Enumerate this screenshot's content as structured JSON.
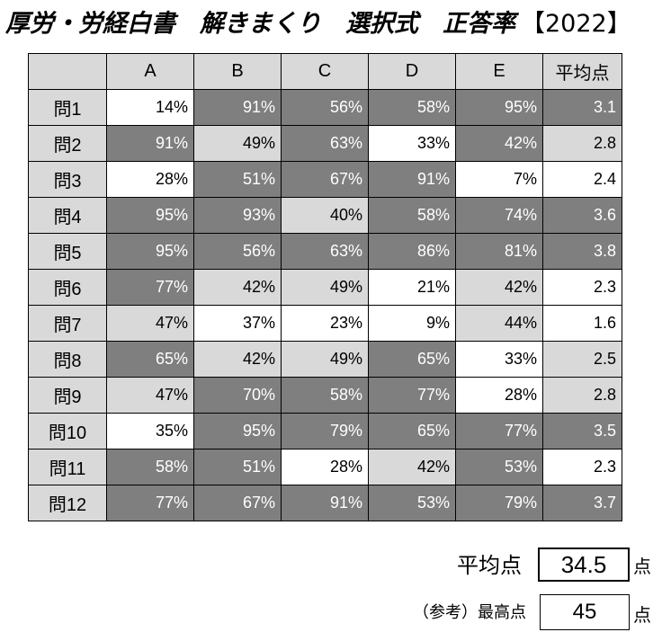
{
  "title": {
    "main": "厚労・労経白書　解きまくり　選択式　正答率",
    "year": "【2022】"
  },
  "table": {
    "headers": [
      "",
      "A",
      "B",
      "C",
      "D",
      "E",
      "平均点"
    ],
    "rows": [
      {
        "label": "問1",
        "values": [
          "14%",
          "91%",
          "56%",
          "58%",
          "95%"
        ],
        "avg": "3.1"
      },
      {
        "label": "問2",
        "values": [
          "91%",
          "49%",
          "63%",
          "33%",
          "42%"
        ],
        "avg": "2.8"
      },
      {
        "label": "問3",
        "values": [
          "28%",
          "51%",
          "67%",
          "91%",
          "7%"
        ],
        "avg": "2.4"
      },
      {
        "label": "問4",
        "values": [
          "95%",
          "93%",
          "40%",
          "58%",
          "74%"
        ],
        "avg": "3.6"
      },
      {
        "label": "問5",
        "values": [
          "95%",
          "56%",
          "63%",
          "86%",
          "81%"
        ],
        "avg": "3.8"
      },
      {
        "label": "問6",
        "values": [
          "77%",
          "42%",
          "49%",
          "21%",
          "42%"
        ],
        "avg": "2.3"
      },
      {
        "label": "問7",
        "values": [
          "47%",
          "37%",
          "23%",
          "9%",
          "44%"
        ],
        "avg": "1.6"
      },
      {
        "label": "問8",
        "values": [
          "65%",
          "42%",
          "49%",
          "65%",
          "33%"
        ],
        "avg": "2.5"
      },
      {
        "label": "問9",
        "values": [
          "47%",
          "70%",
          "58%",
          "77%",
          "28%"
        ],
        "avg": "2.8"
      },
      {
        "label": "問10",
        "values": [
          "35%",
          "95%",
          "79%",
          "65%",
          "77%"
        ],
        "avg": "3.5"
      },
      {
        "label": "問11",
        "values": [
          "58%",
          "51%",
          "28%",
          "42%",
          "53%"
        ],
        "avg": "2.3"
      },
      {
        "label": "問12",
        "values": [
          "77%",
          "67%",
          "91%",
          "53%",
          "79%"
        ],
        "avg": "3.7"
      }
    ],
    "shading": [
      [
        "white",
        "dark",
        "dark",
        "dark",
        "dark",
        "dark"
      ],
      [
        "dark",
        "light",
        "dark",
        "white",
        "dark",
        "light"
      ],
      [
        "white",
        "dark",
        "dark",
        "dark",
        "white",
        "white"
      ],
      [
        "dark",
        "dark",
        "light",
        "dark",
        "dark",
        "dark"
      ],
      [
        "dark",
        "dark",
        "dark",
        "dark",
        "dark",
        "dark"
      ],
      [
        "dark",
        "light",
        "light",
        "white",
        "light",
        "white"
      ],
      [
        "light",
        "white",
        "white",
        "white",
        "light",
        "white"
      ],
      [
        "dark",
        "light",
        "light",
        "dark",
        "white",
        "light"
      ],
      [
        "light",
        "dark",
        "dark",
        "dark",
        "white",
        "light"
      ],
      [
        "white",
        "dark",
        "dark",
        "dark",
        "dark",
        "dark"
      ],
      [
        "dark",
        "dark",
        "white",
        "light",
        "dark",
        "white"
      ],
      [
        "dark",
        "dark",
        "dark",
        "dark",
        "dark",
        "dark"
      ]
    ],
    "colors": {
      "white": "#ffffff",
      "light": "#d9d9d9",
      "dark": "#7f7f7f"
    }
  },
  "summary": {
    "avg_label": "平均点",
    "avg_value": "34.5",
    "avg_unit": "点",
    "max_label": "（参考）最高点",
    "max_value": "45",
    "max_unit": "点"
  }
}
